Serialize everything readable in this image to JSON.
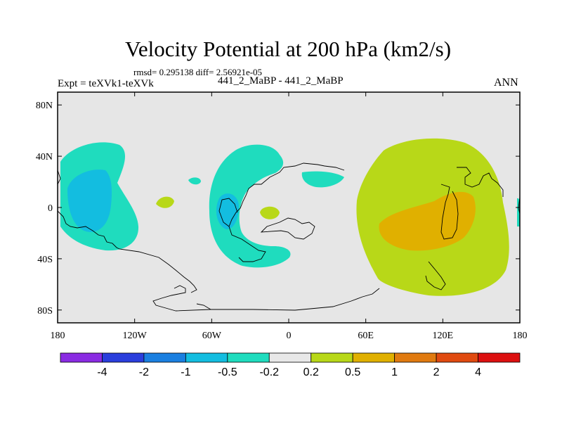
{
  "chart_data": {
    "type": "contour-map",
    "title": "Velocity Potential at 200 hPa (km2/s)",
    "stats": "rmsd= 0.295138 diff= 2.56921e-05",
    "left_label": "Expt = teXVk1-teXVk",
    "center_label": "441_2_MaBP - 441_2_MaBP",
    "right_label": "ANN",
    "x_ticks": [
      {
        "value": -180,
        "label": "180"
      },
      {
        "value": -120,
        "label": "120W"
      },
      {
        "value": -60,
        "label": "60W"
      },
      {
        "value": 0,
        "label": "0"
      },
      {
        "value": 60,
        "label": "60E"
      },
      {
        "value": 120,
        "label": "120E"
      },
      {
        "value": 180,
        "label": "180"
      }
    ],
    "y_ticks": [
      {
        "value": 80,
        "label": "80N"
      },
      {
        "value": 40,
        "label": "40N"
      },
      {
        "value": 0,
        "label": "0"
      },
      {
        "value": -40,
        "label": "40S"
      },
      {
        "value": -80,
        "label": "80S"
      }
    ],
    "xlim": [
      -180,
      180
    ],
    "ylim": [
      -90,
      90
    ],
    "colorbar": {
      "colors": [
        "#8a2be2",
        "#2a3edc",
        "#1a7fe0",
        "#13bde0",
        "#1fdcbe",
        "#e8e8e8",
        "#b8d818",
        "#e0b000",
        "#e07a10",
        "#e04a10",
        "#dc1010"
      ],
      "labels": [
        "-4",
        "-2",
        "-1",
        "-0.5",
        "-0.2",
        "0.2",
        "0.5",
        "1",
        "2",
        "4"
      ]
    },
    "background_color": "#e6e6e6"
  }
}
